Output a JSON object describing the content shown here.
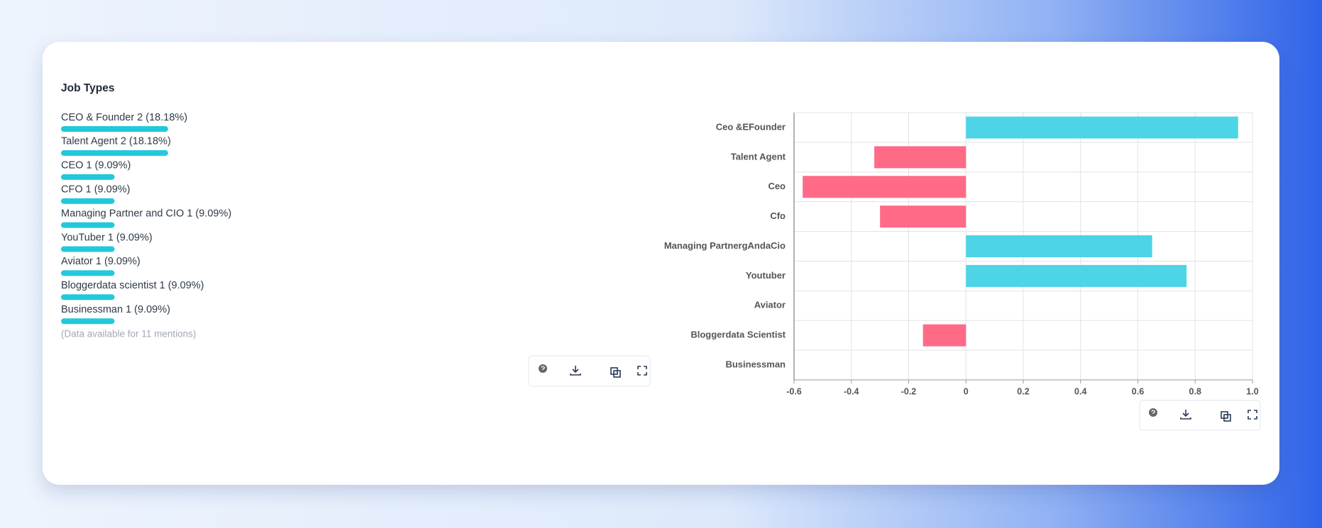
{
  "panel": {
    "title": "Job Types",
    "items": [
      {
        "label": "CEO & Founder 2 (18.18%)",
        "value": 18.18
      },
      {
        "label": "Talent Agent 2 (18.18%)",
        "value": 18.18
      },
      {
        "label": "CEO 1 (9.09%)",
        "value": 9.09
      },
      {
        "label": "CFO 1 (9.09%)",
        "value": 9.09
      },
      {
        "label": "Managing Partner and CIO 1 (9.09%)",
        "value": 9.09
      },
      {
        "label": "YouTuber 1 (9.09%)",
        "value": 9.09
      },
      {
        "label": "Aviator 1 (9.09%)",
        "value": 9.09
      },
      {
        "label": "Bloggerdata scientist 1 (9.09%)",
        "value": 9.09
      },
      {
        "label": "Businessman 1 (9.09%)",
        "value": 9.09
      }
    ],
    "bar_color": "#22c8de",
    "note": "(Data available for 11 mentions)"
  },
  "chart_data": {
    "type": "bar",
    "orientation": "horizontal",
    "categories": [
      "Ceo &EFounder",
      "Talent Agent",
      "Ceo",
      "Cfo",
      "Managing PartnergAndaCio",
      "Youtuber",
      "Aviator",
      "Bloggerdata Scientist",
      "Businessman"
    ],
    "values": [
      0.95,
      -0.32,
      -0.57,
      -0.3,
      0.65,
      0.77,
      0,
      -0.15,
      0
    ],
    "positive_color": "#4dd4e6",
    "negative_color": "#ff6b87",
    "xlim": [
      -0.6,
      1.0
    ],
    "xticks": [
      -0.6,
      -0.4,
      -0.2,
      0,
      0.2,
      0.4,
      0.6,
      0.8,
      {
        "value": 1,
        "label": "1.0"
      }
    ],
    "grid": true
  }
}
